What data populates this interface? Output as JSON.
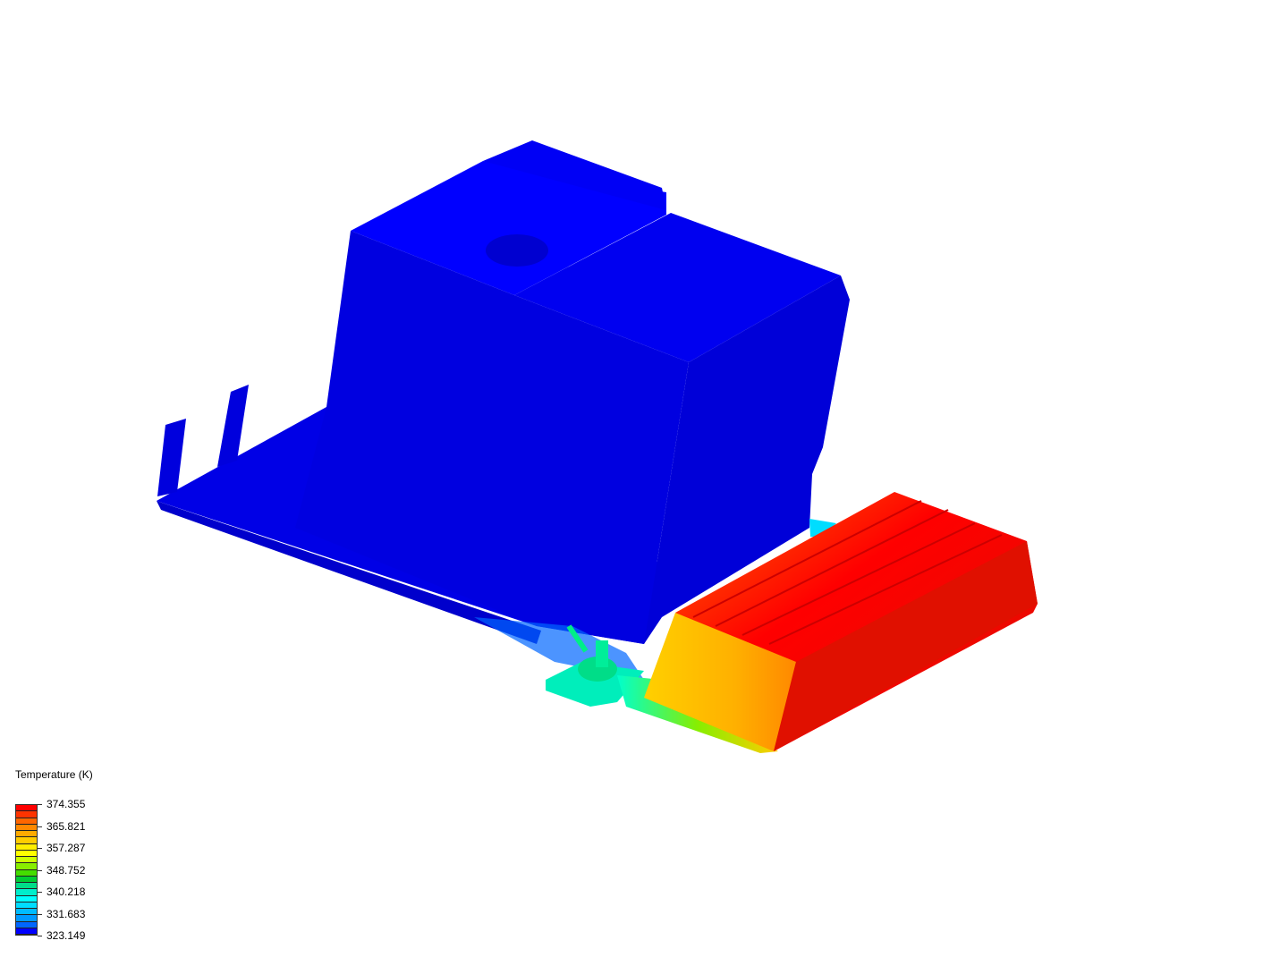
{
  "legend": {
    "title": "Temperature (K)",
    "labels": [
      "374.355",
      "365.821",
      "357.287",
      "348.752",
      "340.218",
      "331.683",
      "323.149"
    ],
    "min": 323.149,
    "max": 374.355,
    "colormap": [
      "#ff0000",
      "#ff3300",
      "#ff6600",
      "#ff8800",
      "#ffaa00",
      "#ffcc00",
      "#ffee00",
      "#ffff00",
      "#ccff00",
      "#88ee00",
      "#44dd00",
      "#00cc33",
      "#00dd88",
      "#00eecc",
      "#00ffff",
      "#00ddff",
      "#00bbff",
      "#0099ff",
      "#0066ff",
      "#0000ff"
    ]
  },
  "colors": {
    "cold": "#0000ee",
    "hot": "#ff0000",
    "warm": "#ffaa00",
    "mid": "#00ee99"
  }
}
